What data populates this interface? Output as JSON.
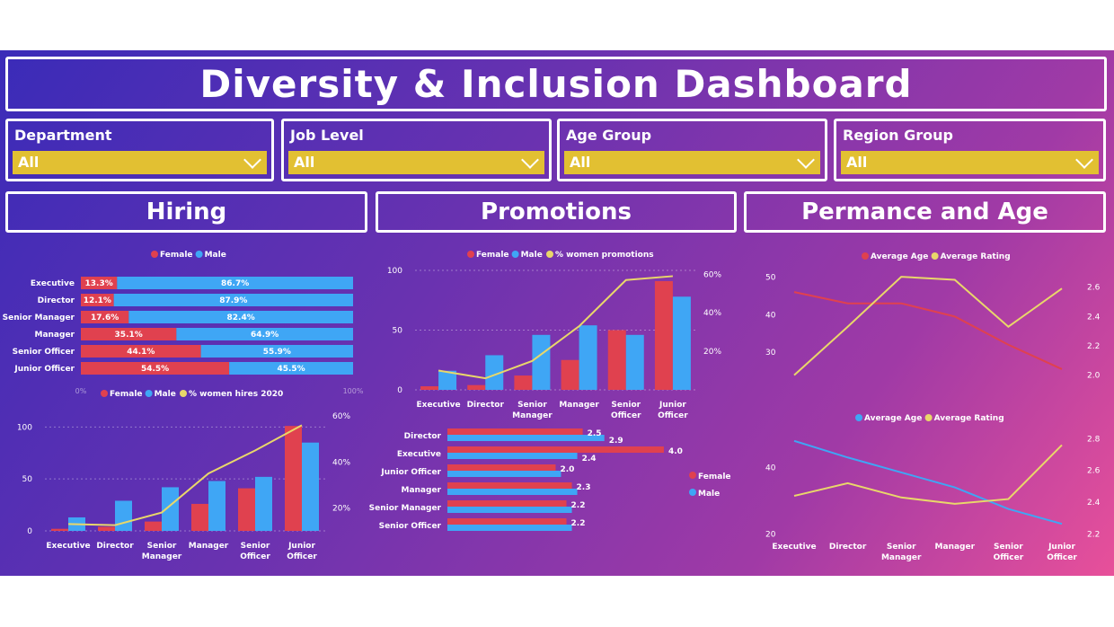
{
  "title": "Diversity & Inclusion Dashboard",
  "filters": [
    {
      "label": "Department",
      "value": "All"
    },
    {
      "label": "Job Level",
      "value": "All"
    },
    {
      "label": "Age Group",
      "value": "All"
    },
    {
      "label": "Region Group",
      "value": "All"
    }
  ],
  "sections": {
    "hiring": "Hiring",
    "promotions": "Promotions",
    "performance": "Permance and Age"
  },
  "colors": {
    "female": "#e0414f",
    "male": "#3fa6f5",
    "line": "#e9d76a",
    "avg_age_red": "#e0414f",
    "avg_age_blue": "#3fa6f5"
  },
  "chart_data": [
    {
      "type": "bar",
      "orientation": "horizontal-stacked-100",
      "categories": [
        "Executive",
        "Director",
        "Senior Manager",
        "Manager",
        "Senior Officer",
        "Junior Officer"
      ],
      "series": [
        {
          "name": "Female",
          "values": [
            13.3,
            12.1,
            17.6,
            35.1,
            44.1,
            54.5
          ],
          "labels": [
            "13.3%",
            "12.1%",
            "17.6%",
            "35.1%",
            "44.1%",
            "54.5%"
          ]
        },
        {
          "name": "Male",
          "values": [
            86.7,
            87.9,
            82.4,
            64.9,
            55.9,
            45.5
          ],
          "labels": [
            "86.7%",
            "87.9%",
            "82.4%",
            "64.9%",
            "55.9%",
            "45.5%"
          ]
        }
      ],
      "xticks": [
        "0%",
        "100%"
      ]
    },
    {
      "type": "bar",
      "categories": [
        "Executive",
        "Director",
        "Senior Manager",
        "Manager",
        "Senior Officer",
        "Junior Officer"
      ],
      "series": [
        {
          "name": "Female",
          "values": [
            2,
            4,
            9,
            26,
            41,
            101
          ]
        },
        {
          "name": "Male",
          "values": [
            13,
            29,
            42,
            48,
            52,
            85
          ]
        },
        {
          "name": "% women hires 2020",
          "axis": "right",
          "values": [
            13,
            12.5,
            18,
            35,
            45,
            56
          ]
        }
      ],
      "ylim": [
        0,
        115
      ],
      "yticks": [
        "0",
        "50",
        "100"
      ],
      "y2lim": [
        10,
        62
      ],
      "y2ticks": [
        "20%",
        "40%",
        "60%"
      ]
    },
    {
      "type": "bar",
      "categories": [
        "Executive",
        "Director",
        "Senior Manager",
        "Manager",
        "Senior Officer",
        "Junior Officer"
      ],
      "series": [
        {
          "name": "Female",
          "values": [
            3,
            4,
            12,
            25,
            50,
            91
          ]
        },
        {
          "name": "Male",
          "values": [
            16,
            29,
            46,
            54,
            46,
            78
          ]
        },
        {
          "name": "% women promotions",
          "axis": "right",
          "values": [
            10,
            6,
            15,
            33,
            57,
            59
          ]
        }
      ],
      "ylim": [
        0,
        100
      ],
      "yticks": [
        "0",
        "50",
        "100"
      ],
      "y2lim": [
        0,
        62
      ],
      "y2ticks": [
        "20%",
        "40%",
        "60%"
      ]
    },
    {
      "type": "bar",
      "orientation": "horizontal",
      "categories": [
        "Director",
        "Executive",
        "Junior Officer",
        "Manager",
        "Senior Manager",
        "Senior Officer"
      ],
      "series": [
        {
          "name": "Female",
          "values": [
            2.5,
            4.0,
            2.0,
            2.3,
            2.2,
            2.2
          ],
          "labels": [
            "2.5",
            "4.0",
            "2.0",
            "2.3",
            "2.2",
            "2.2"
          ]
        },
        {
          "name": "Male",
          "values": [
            2.9,
            2.4,
            2.1,
            2.4,
            2.3,
            2.3
          ],
          "labels": [
            "2.9",
            "2.4",
            "",
            "",
            "",
            ""
          ]
        }
      ],
      "xlim": [
        0,
        4.2
      ]
    },
    {
      "type": "line",
      "categories": [
        "Executive",
        "Director",
        "Senior Manager",
        "Manager",
        "Senior Officer",
        "Junior Officer"
      ],
      "series": [
        {
          "name": "Average Age",
          "axis": "left",
          "values": [
            46,
            43,
            43,
            39.5,
            32,
            25.5
          ]
        },
        {
          "name": "Average Rating",
          "axis": "right",
          "values": [
            2.0,
            2.33,
            2.67,
            2.65,
            2.33,
            2.59
          ]
        }
      ],
      "ylim": [
        20,
        52
      ],
      "yticks": [
        "30",
        "40",
        "50"
      ],
      "y2lim": [
        1.9,
        2.72
      ],
      "y2ticks": [
        "2.0",
        "2.2",
        "2.4",
        "2.6"
      ]
    },
    {
      "type": "line",
      "categories": [
        "Executive",
        "Director",
        "Senior Manager",
        "Manager",
        "Senior Officer",
        "Junior Officer"
      ],
      "series": [
        {
          "name": "Average Age",
          "axis": "left",
          "values": [
            48,
            43,
            38.5,
            34,
            27.5,
            23
          ]
        },
        {
          "name": "Average Rating",
          "axis": "right",
          "values": [
            2.44,
            2.52,
            2.43,
            2.39,
            2.42,
            2.76
          ]
        }
      ],
      "ylim": [
        19,
        52
      ],
      "yticks": [
        "20",
        "40"
      ],
      "y2lim": [
        2.18,
        2.87
      ],
      "y2ticks": [
        "2.2",
        "2.4",
        "2.6",
        "2.8"
      ]
    }
  ],
  "legends": {
    "hiring_top": [
      "Female",
      "Male"
    ],
    "hiring_bottom": [
      "Female",
      "Male",
      "% women hires 2020"
    ],
    "promotions_top": [
      "Female",
      "Male",
      "% women promotions"
    ],
    "promotions_bottom": [
      "Female",
      "Male"
    ],
    "perf_top": [
      "Average Age",
      "Average Rating"
    ],
    "perf_bottom": [
      "Average Age",
      "Average Rating"
    ]
  },
  "xlabels": [
    [
      "Executive"
    ],
    [
      "Director"
    ],
    [
      "Senior",
      "Manager"
    ],
    [
      "Manager"
    ],
    [
      "Senior",
      "Officer"
    ],
    [
      "Junior",
      "Officer"
    ]
  ]
}
